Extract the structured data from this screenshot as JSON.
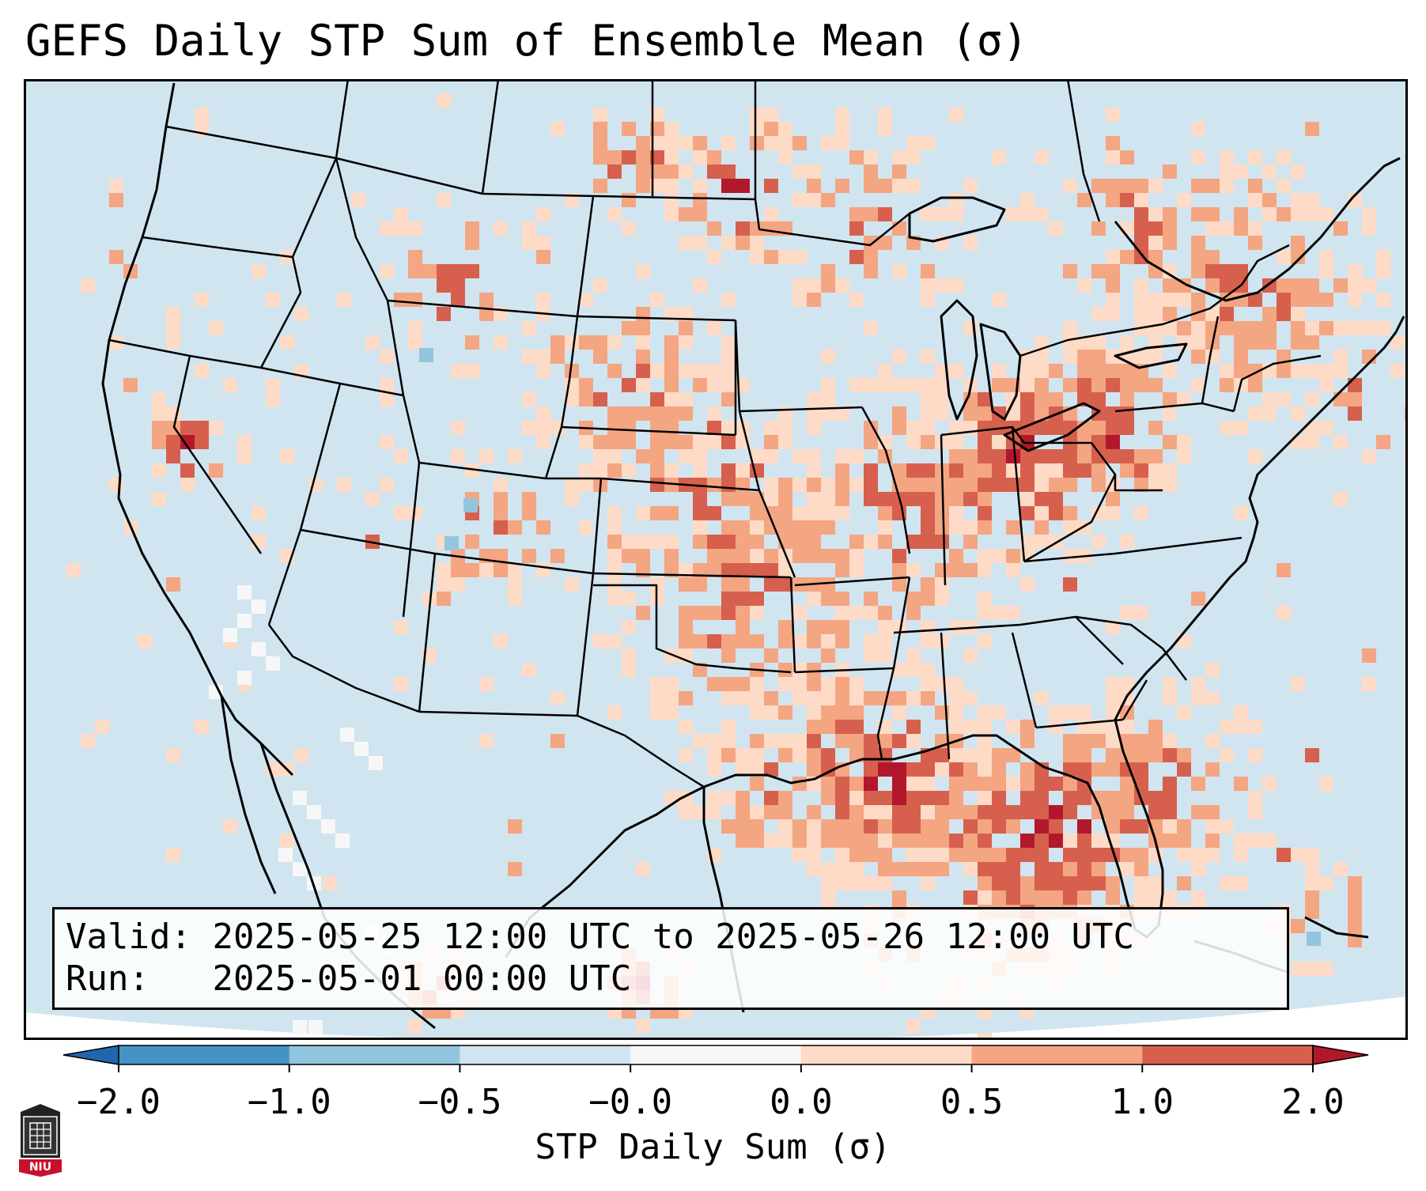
{
  "title": "GEFS Daily STP Sum of Ensemble Mean (σ)",
  "info": {
    "valid_label": "Valid:",
    "valid_value": "2025-05-25 12:00 UTC to 2025-05-26 12:00 UTC",
    "run_label": "Run:",
    "run_value": "2025-05-01 00:00 UTC"
  },
  "colorbar": {
    "label": "STP Daily Sum (σ)",
    "ticks": [
      "−2.0",
      "−1.0",
      "−0.5",
      "−0.0",
      "0.0",
      "0.5",
      "1.0",
      "2.0"
    ],
    "colors": [
      "#4393c3",
      "#92c5de",
      "#d1e5f0",
      "#f7f7f7",
      "#fddbc7",
      "#f4a582",
      "#d6604d"
    ],
    "extend_low_color": "#2166ac",
    "extend_high_color": "#b2182b"
  },
  "map": {
    "background_color": "#d1e5f0",
    "outline_color": "#000000"
  },
  "logo": {
    "text": "NIU"
  }
}
